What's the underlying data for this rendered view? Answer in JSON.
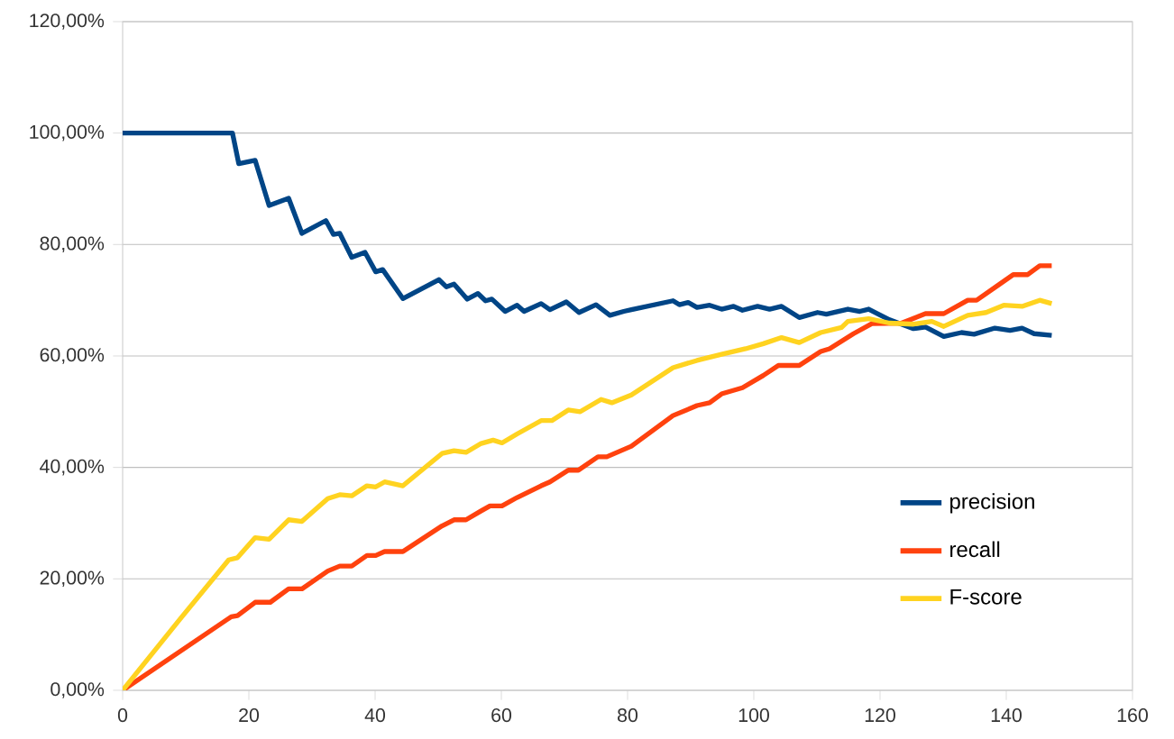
{
  "chart_data": {
    "type": "line",
    "xlim": [
      0,
      160
    ],
    "xticks": [
      0,
      20,
      40,
      60,
      80,
      100,
      120,
      140,
      160
    ],
    "ylim": [
      0,
      120
    ],
    "yticks": [
      {
        "value": 0,
        "label": "0,00%"
      },
      {
        "value": 20,
        "label": "20,00%"
      },
      {
        "value": 40,
        "label": "40,00%"
      },
      {
        "value": 60,
        "label": "60,00%"
      },
      {
        "value": 80,
        "label": "80,00%"
      },
      {
        "value": 100,
        "label": "100,00%"
      },
      {
        "value": 120,
        "label": "120,00%"
      }
    ],
    "grid": "y",
    "legend": "bottom right",
    "marker": "none",
    "line_style": "solid",
    "series": [
      {
        "name": "precision",
        "color": "#004586",
        "x": [
          0,
          17.4,
          18.4,
          21,
          23.2,
          26.3,
          28.4,
          32.2,
          33.4,
          34.4,
          36.3,
          38.4,
          40.1,
          41.2,
          44.4,
          50.1,
          51.3,
          52.5,
          54.6,
          56.3,
          57.5,
          58.5,
          60.6,
          62.5,
          63.6,
          66.3,
          67.7,
          70.3,
          72.3,
          75,
          77.2,
          79.4,
          80.6,
          87.2,
          88.2,
          89.6,
          91,
          93,
          94.9,
          96.8,
          98.2,
          100.6,
          102.5,
          104.4,
          107.2,
          110.1,
          111.5,
          114.9,
          116.8,
          118.2,
          121.5,
          125.3,
          127.2,
          130.1,
          132.9,
          134.9,
          138.2,
          140.6,
          142.5,
          144.4,
          147.2
        ],
        "values": [
          100,
          100,
          94.5,
          95.1,
          87,
          88.3,
          82,
          84.3,
          81.8,
          82,
          77.7,
          78.6,
          75.1,
          75.5,
          70.3,
          73.7,
          72.4,
          72.9,
          70.2,
          71.2,
          69.9,
          70.2,
          68,
          69.1,
          68,
          69.4,
          68.3,
          69.7,
          67.8,
          69.2,
          67.3,
          68,
          68.3,
          69.9,
          69.2,
          69.6,
          68.7,
          69.1,
          68.4,
          68.9,
          68.2,
          68.9,
          68.4,
          68.9,
          66.9,
          67.8,
          67.5,
          68.4,
          68,
          68.4,
          66.5,
          64.9,
          65.2,
          63.5,
          64.2,
          63.9,
          65,
          64.6,
          65,
          64,
          63.7
        ]
      },
      {
        "name": "recall",
        "color": "#ff420e",
        "x": [
          0,
          17.2,
          18.2,
          21,
          23.4,
          26.3,
          28.4,
          32.5,
          34.4,
          36.3,
          38.7,
          40.1,
          41.5,
          44.4,
          50.6,
          52.5,
          54.4,
          56.8,
          58.2,
          60.1,
          62.5,
          66.3,
          67.7,
          70.6,
          72.2,
          75.3,
          76.7,
          80.6,
          87.2,
          91,
          93,
          94.9,
          98.2,
          101.5,
          103.9,
          107.2,
          110.6,
          112,
          115.8,
          118.7,
          123.4,
          127.2,
          130.1,
          133.9,
          135.3,
          138.7,
          141.1,
          143.4,
          145.3,
          147.2
        ],
        "values": [
          0,
          13.2,
          13.4,
          15.8,
          15.8,
          18.2,
          18.2,
          21.4,
          22.3,
          22.3,
          24.2,
          24.2,
          24.9,
          24.9,
          29.5,
          30.6,
          30.6,
          32.2,
          33.1,
          33.1,
          34.6,
          36.7,
          37.4,
          39.5,
          39.5,
          41.9,
          41.9,
          43.8,
          49.3,
          51.1,
          51.6,
          53.2,
          54.3,
          56.5,
          58.3,
          58.3,
          60.8,
          61.3,
          64,
          65.8,
          65.9,
          67.6,
          67.6,
          70,
          70,
          72.7,
          74.6,
          74.6,
          76.2,
          76.2
        ]
      },
      {
        "name": "F-score",
        "color": "#ffd320",
        "x": [
          0,
          9.1,
          16.8,
          18.2,
          21,
          23.2,
          26.3,
          28.4,
          32.5,
          34.4,
          36.3,
          38.7,
          40.1,
          41.5,
          44.4,
          50.6,
          52.5,
          54.4,
          56.8,
          58.7,
          60.1,
          62.5,
          66.3,
          68,
          70.6,
          72.5,
          75.8,
          77.5,
          80.6,
          87.2,
          91,
          94.9,
          98.7,
          101.5,
          104.4,
          107.2,
          110.6,
          113.9,
          114.9,
          118.2,
          121.5,
          125.3,
          128.2,
          130.1,
          133.9,
          136.8,
          139.6,
          142.5,
          145.3,
          147.2
        ],
        "values": [
          0,
          12.8,
          23.4,
          23.8,
          27.4,
          27.1,
          30.6,
          30.3,
          34.4,
          35.1,
          34.9,
          36.7,
          36.5,
          37.4,
          36.7,
          42.5,
          43,
          42.7,
          44.3,
          44.9,
          44.4,
          46,
          48.4,
          48.4,
          50.3,
          50,
          52.2,
          51.6,
          53,
          57.9,
          59.2,
          60.3,
          61.3,
          62.2,
          63.3,
          62.4,
          64.2,
          65.1,
          66.2,
          66.7,
          65.9,
          65.7,
          66.2,
          65.3,
          67.3,
          67.8,
          69.1,
          68.9,
          70,
          69.4
        ]
      }
    ]
  }
}
